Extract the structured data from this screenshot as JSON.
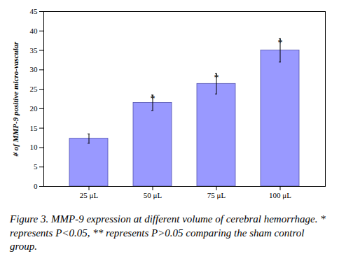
{
  "chart_data": {
    "type": "bar",
    "ylabel": "# of MMP-9 positive micro-vascular",
    "caption": "Figure 3. MMP-9 expression at different volume of cerebral hemorrhage. * represents P<0.05, ** represents P>0.05 comparing the sham control group.",
    "categories": [
      "25 μL",
      "50 μL",
      "75 μL",
      "100 μL"
    ],
    "values": [
      12.3,
      21.5,
      26.4,
      35.0
    ],
    "errors": [
      1.2,
      2.0,
      2.6,
      3.0
    ],
    "annotations": [
      null,
      "*",
      "*",
      "*"
    ],
    "color": "#9999ff",
    "ylim": [
      0,
      45
    ],
    "yticks": [
      0,
      5,
      10,
      15,
      20,
      25,
      30,
      35,
      40,
      45
    ],
    "grid": false
  }
}
